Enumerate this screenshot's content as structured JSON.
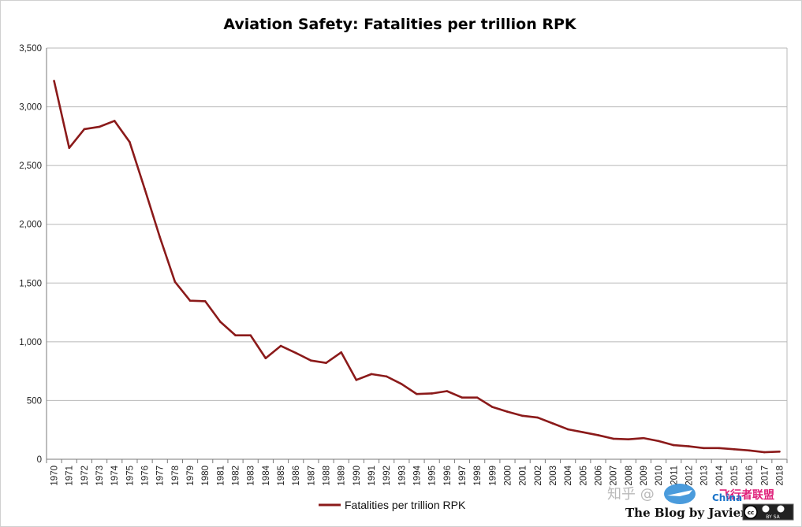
{
  "chart_data": {
    "type": "line",
    "title": "Aviation Safety: Fatalities per trillion RPK",
    "xlabel": "",
    "ylabel": "",
    "ylim": [
      0,
      3500
    ],
    "yticks": [
      0,
      500,
      1000,
      1500,
      2000,
      2500,
      3000,
      3500
    ],
    "ytick_labels": [
      "0",
      "500",
      "1,000",
      "1,500",
      "2,000",
      "2,500",
      "3,000",
      "3,500"
    ],
    "grid": "horizontal",
    "legend_position": "bottom-center",
    "categories": [
      "1970",
      "1971",
      "1972",
      "1973",
      "1974",
      "1975",
      "1976",
      "1977",
      "1978",
      "1979",
      "1980",
      "1981",
      "1982",
      "1983",
      "1984",
      "1985",
      "1986",
      "1987",
      "1988",
      "1989",
      "1990",
      "1991",
      "1992",
      "1993",
      "1994",
      "1995",
      "1996",
      "1997",
      "1998",
      "1999",
      "2000",
      "2001",
      "2002",
      "2003",
      "2004",
      "2005",
      "2006",
      "2007",
      "2008",
      "2009",
      "2010",
      "2011",
      "2012",
      "2013",
      "2014",
      "2015",
      "2016",
      "2017",
      "2018"
    ],
    "series": [
      {
        "name": "Fatalities per trillion RPK",
        "color": "#8b1a1a",
        "values": [
          3220,
          2650,
          2810,
          2830,
          2880,
          2700,
          2300,
          1890,
          1510,
          1350,
          1345,
          1170,
          1055,
          1055,
          860,
          965,
          905,
          840,
          820,
          910,
          675,
          725,
          705,
          640,
          555,
          560,
          580,
          525,
          525,
          445,
          405,
          370,
          355,
          305,
          255,
          230,
          205,
          175,
          170,
          180,
          155,
          120,
          110,
          95,
          95,
          85,
          75,
          60,
          65
        ]
      }
    ]
  },
  "watermark": {
    "zhihu_text": "知乎 @",
    "blog_text": "The Blog by Javier",
    "cc_label": "BY   SA",
    "site_text": "飞行者联盟",
    "site_sub": "China"
  }
}
